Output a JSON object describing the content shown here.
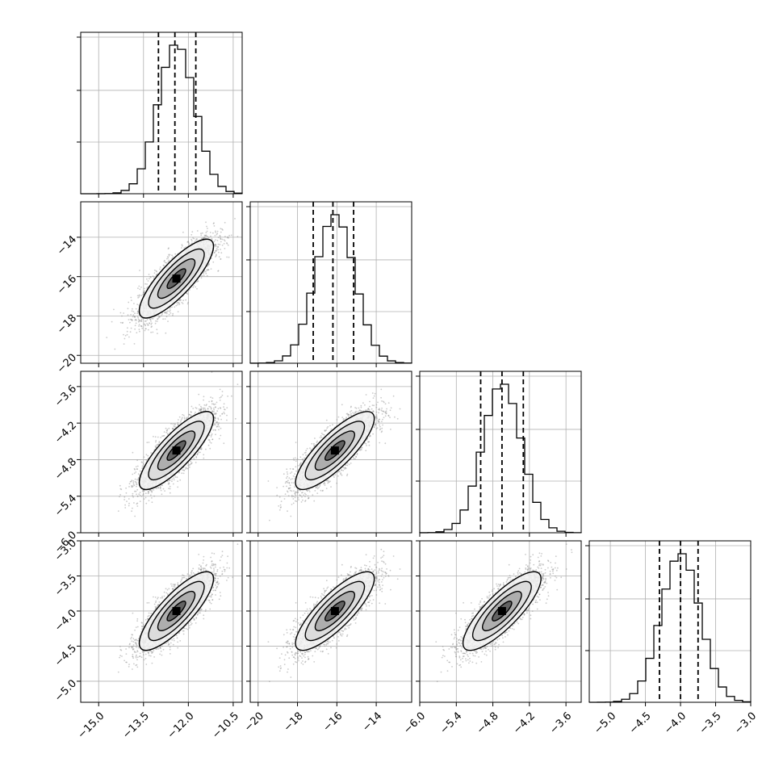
{
  "chart_data": {
    "type": "corner",
    "parameters": [
      {
        "range": [
          -15.6,
          -10.2
        ],
        "ticks": [
          -15.0,
          -13.5,
          -12.0,
          -10.5
        ],
        "tick_labels": [
          "−15.0",
          "−13.5",
          "−12.0",
          "−10.5"
        ],
        "quantiles": [
          -13.0,
          -12.45,
          -11.75
        ],
        "mean": -12.4,
        "sd": 0.62
      },
      {
        "range": [
          -20.4,
          -12.2
        ],
        "ticks": [
          -20,
          -18,
          -16,
          -14
        ],
        "tick_labels": [
          "−20",
          "−18",
          "−16",
          "−14"
        ],
        "quantiles": [
          -17.2,
          -16.2,
          -15.15
        ],
        "mean": -16.1,
        "sd": 1.0
      },
      {
        "range": [
          -6.0,
          -3.35
        ],
        "ticks": [
          -6.0,
          -5.4,
          -4.8,
          -4.2,
          -3.6
        ],
        "tick_labels": [
          "−6.0",
          "−5.4",
          "−4.8",
          "−4.2",
          "−3.6"
        ],
        "quantiles": [
          -5.0,
          -4.65,
          -4.3
        ],
        "mean": -4.65,
        "sd": 0.32
      },
      {
        "range": [
          -5.3,
          -3.0
        ],
        "ticks": [
          -5.0,
          -4.5,
          -4.0,
          -3.5,
          -3.0
        ],
        "tick_labels": [
          "−5.0",
          "−4.5",
          "−4.0",
          "−3.5",
          "−3.0"
        ],
        "quantiles": [
          -4.3,
          -4.0,
          -3.75
        ],
        "mean": -4.0,
        "sd": 0.28
      }
    ],
    "correlation": 0.82,
    "sample_points": 3000,
    "histogram_bins": 20,
    "contour_levels_sigma": [
      0.5,
      1.0,
      1.5,
      2.0
    ],
    "colors": {
      "line": "#000000",
      "points": "#8c8c8c",
      "grid": "#b0b0b0"
    },
    "grid": true,
    "xlabels": [
      "",
      "",
      "",
      ""
    ],
    "ylabels": [
      "",
      "",
      "",
      ""
    ]
  }
}
